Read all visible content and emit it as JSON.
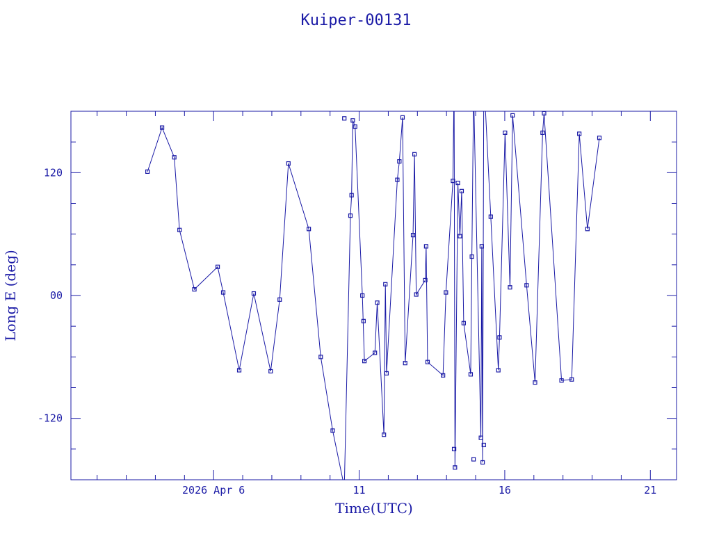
{
  "chart_data": {
    "type": "line",
    "title": "Kuiper-00131",
    "xlabel": "Time(UTC)",
    "ylabel": "Long E (deg)",
    "x_tick_labels": [
      "2026 Apr  6",
      "11",
      "16",
      "21"
    ],
    "x_tick_values": [
      6,
      11,
      16,
      21
    ],
    "x_minor_step": 1,
    "xlim": [
      1.1,
      21.9
    ],
    "y_tick_labels": [
      "-120",
      "00",
      "120"
    ],
    "y_tick_values": [
      -120,
      0,
      120
    ],
    "y_minor_step": 30,
    "ylim": [
      -180,
      180
    ],
    "y_wrap": 360,
    "grid": false,
    "legend": "none",
    "color": "#1a1aa6",
    "series": [
      {
        "x": [
          3.73,
          4.23,
          4.65,
          4.83,
          5.34,
          6.14,
          6.33,
          6.88,
          7.38,
          7.96,
          8.27,
          8.57,
          9.27,
          9.68,
          10.09,
          10.49,
          10.7,
          10.74,
          10.78,
          10.86,
          11.11,
          11.18,
          11.54,
          11.62,
          11.85,
          11.9,
          11.94,
          12.31,
          12.38,
          12.49,
          12.58,
          12.85,
          12.9,
          12.96,
          13.27,
          13.3,
          13.35,
          13.88,
          13.98,
          14.22,
          14.26,
          14.29,
          14.39,
          14.46,
          14.52,
          14.59,
          14.83,
          14.87,
          14.93,
          15.18,
          15.21,
          15.24,
          15.28,
          15.52,
          15.78,
          15.82,
          16.01,
          16.18,
          16.27,
          16.75,
          17.04,
          17.3,
          17.35,
          17.95,
          18.3,
          18.56,
          18.84,
          19.25
        ],
        "y": [
          121,
          164,
          135,
          64,
          6,
          28,
          3,
          -73,
          2,
          -74,
          -4,
          129,
          65,
          -60,
          -132,
          -187,
          78,
          98,
          171,
          165,
          0,
          -64,
          -56,
          -7,
          -136,
          11,
          -76,
          113,
          131,
          174,
          -66,
          59,
          138,
          1,
          15,
          48,
          -65,
          -78,
          3,
          112,
          210,
          -168,
          110,
          58,
          102,
          -27,
          -77,
          38,
          200,
          -139,
          48,
          -163,
          214,
          77,
          -73,
          -41,
          159,
          8,
          176,
          10,
          -85,
          159,
          178,
          -83,
          -82,
          158,
          65,
          154
        ]
      }
    ],
    "decoration_markers": [
      {
        "x": 11.15,
        "y": -25
      }
    ]
  }
}
